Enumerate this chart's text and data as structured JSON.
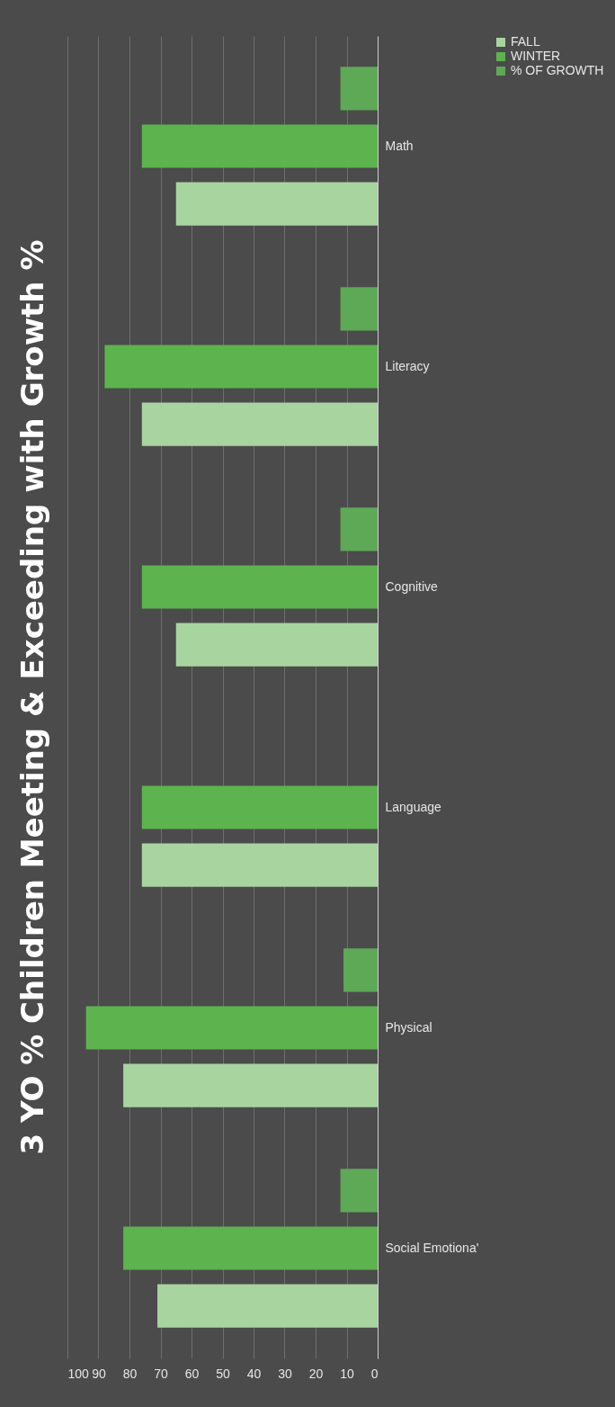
{
  "chart_data": {
    "type": "bar",
    "title": "3 YO % Children Meeting & Exceeding with Growth %",
    "orientation": "horizontal",
    "categories": [
      "Math",
      "Literacy",
      "Cognitive",
      "Language",
      "Physical",
      "Social Emotiona'"
    ],
    "series": [
      {
        "name": "FALL",
        "color": "#a8d4a0",
        "values": [
          65,
          76,
          65,
          76,
          82,
          71
        ]
      },
      {
        "name": "WINTER",
        "color": "#5db34e",
        "values": [
          76,
          88,
          76,
          76,
          94,
          82
        ]
      },
      {
        "name": "% OF GROWTH",
        "color": "#5ea956",
        "values": [
          12,
          12,
          12,
          null,
          11,
          12
        ]
      }
    ],
    "xlim": [
      100,
      0
    ],
    "xticks": [
      0,
      10,
      20,
      30,
      40,
      50,
      60,
      70,
      80,
      90,
      100
    ],
    "grid": "x",
    "legend": "right"
  }
}
